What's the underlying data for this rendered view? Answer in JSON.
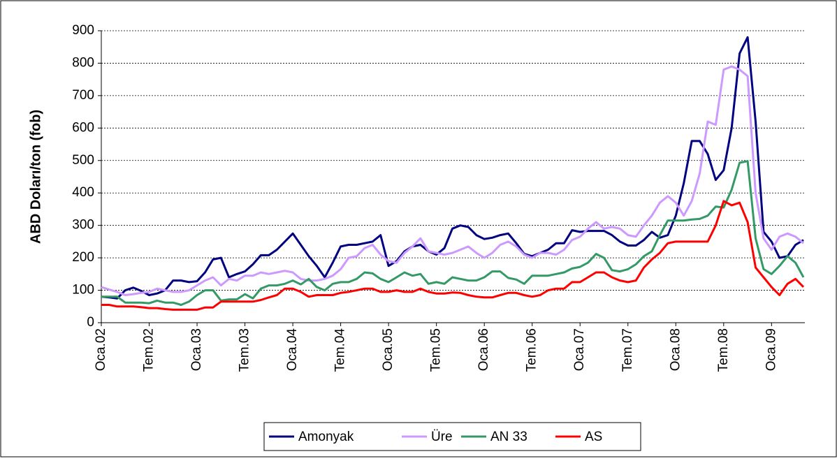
{
  "chart_data": {
    "type": "line",
    "ylabel": "ABD Doları/ton (fob)",
    "categories": [
      "Oca.02",
      null,
      null,
      null,
      null,
      null,
      "Tem.02",
      null,
      null,
      null,
      null,
      null,
      "Oca.03",
      null,
      null,
      null,
      null,
      null,
      "Tem.03",
      null,
      null,
      null,
      null,
      null,
      "Oca.04",
      null,
      null,
      null,
      null,
      null,
      "Tem.04",
      null,
      null,
      null,
      null,
      null,
      "Oca.05",
      null,
      null,
      null,
      null,
      null,
      "Tem.05",
      null,
      null,
      null,
      null,
      null,
      "Oca.06",
      null,
      null,
      null,
      null,
      null,
      "Tem.06",
      null,
      null,
      null,
      null,
      null,
      "Oca.07",
      null,
      null,
      null,
      null,
      null,
      "Tem.07",
      null,
      null,
      null,
      null,
      null,
      "Oca.08",
      null,
      null,
      null,
      null,
      null,
      "Tem.08",
      null,
      null,
      null,
      null,
      null,
      "Oca.09",
      null,
      null,
      null,
      null
    ],
    "series": [
      {
        "name": "Amonyak",
        "color": "#000080",
        "values": [
          80,
          78,
          75,
          100,
          108,
          98,
          85,
          90,
          100,
          130,
          130,
          125,
          128,
          155,
          195,
          200,
          140,
          150,
          158,
          180,
          208,
          208,
          225,
          250,
          275,
          240,
          205,
          175,
          140,
          185,
          235,
          240,
          240,
          245,
          250,
          270,
          175,
          190,
          220,
          235,
          240,
          220,
          210,
          230,
          290,
          300,
          295,
          270,
          258,
          262,
          270,
          275,
          245,
          212,
          205,
          215,
          225,
          245,
          245,
          285,
          280,
          283,
          283,
          283,
          270,
          250,
          238,
          238,
          255,
          280,
          262,
          270,
          330,
          430,
          560,
          560,
          520,
          440,
          470,
          600,
          830,
          880,
          620,
          280,
          250,
          200,
          205,
          240,
          255
        ]
      },
      {
        "name": "Üre",
        "color": "#cc99ff",
        "values": [
          110,
          102,
          95,
          85,
          88,
          92,
          95,
          105,
          100,
          95,
          95,
          100,
          115,
          130,
          140,
          115,
          135,
          130,
          145,
          145,
          155,
          150,
          155,
          160,
          155,
          135,
          130,
          130,
          135,
          145,
          165,
          200,
          205,
          230,
          240,
          210,
          190,
          185,
          215,
          235,
          260,
          220,
          215,
          210,
          215,
          225,
          235,
          215,
          200,
          215,
          240,
          250,
          235,
          210,
          200,
          215,
          215,
          210,
          225,
          255,
          265,
          290,
          310,
          290,
          295,
          290,
          270,
          265,
          300,
          330,
          370,
          390,
          370,
          330,
          375,
          460,
          620,
          610,
          780,
          790,
          780,
          760,
          400,
          260,
          225,
          265,
          275,
          265,
          245
        ]
      },
      {
        "name": "AN 33",
        "color": "#339966",
        "values": [
          80,
          80,
          80,
          62,
          62,
          62,
          60,
          68,
          62,
          62,
          55,
          65,
          85,
          100,
          100,
          68,
          72,
          72,
          88,
          75,
          105,
          115,
          115,
          120,
          130,
          118,
          135,
          110,
          100,
          120,
          125,
          125,
          135,
          155,
          152,
          135,
          125,
          140,
          155,
          145,
          150,
          120,
          125,
          120,
          140,
          135,
          130,
          130,
          140,
          158,
          158,
          138,
          133,
          120,
          145,
          145,
          145,
          150,
          155,
          167,
          172,
          185,
          212,
          200,
          162,
          158,
          165,
          180,
          205,
          220,
          270,
          315,
          315,
          315,
          318,
          320,
          330,
          358,
          355,
          410,
          493,
          498,
          260,
          165,
          150,
          175,
          205,
          185,
          140
        ]
      },
      {
        "name": "AS",
        "color": "#ff0000",
        "values": [
          55,
          55,
          50,
          50,
          50,
          48,
          45,
          45,
          42,
          40,
          40,
          40,
          40,
          47,
          47,
          65,
          65,
          65,
          65,
          65,
          70,
          78,
          85,
          105,
          105,
          95,
          80,
          85,
          85,
          85,
          92,
          95,
          100,
          105,
          105,
          95,
          95,
          100,
          95,
          95,
          105,
          95,
          90,
          90,
          93,
          92,
          85,
          80,
          78,
          78,
          85,
          92,
          92,
          85,
          80,
          85,
          100,
          105,
          105,
          125,
          125,
          140,
          155,
          155,
          140,
          130,
          125,
          130,
          170,
          195,
          215,
          245,
          250,
          250,
          250,
          250,
          250,
          300,
          375,
          362,
          370,
          310,
          170,
          140,
          110,
          85,
          120,
          135,
          110
        ]
      }
    ],
    "ylim": [
      0,
      900
    ],
    "yticks": [
      0,
      100,
      200,
      300,
      400,
      500,
      600,
      700,
      800,
      900
    ],
    "grid": true,
    "legend": "bottom"
  }
}
